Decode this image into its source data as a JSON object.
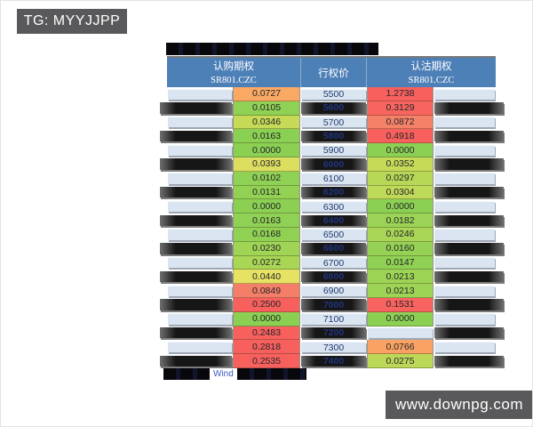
{
  "badges": {
    "telegram": "TG: MYYJJPP",
    "watermark": "www.downpg.com"
  },
  "table": {
    "title_redacted": true,
    "header": {
      "call_group": "认购期权",
      "strike_label": "行权价",
      "put_group": "认沽期权",
      "call_contract": "SR801.CZC",
      "put_contract": "SR801.CZC"
    },
    "rows": [
      {
        "strike": "5500",
        "call": "0.0727",
        "call_bg": "#f9a964",
        "put": "1.2738",
        "put_bg": "#f7605d",
        "dark": false
      },
      {
        "strike": "5600",
        "call": "0.0105",
        "call_bg": "#8fd154",
        "put": "0.3129",
        "put_bg": "#f7655e",
        "dark": true
      },
      {
        "strike": "5700",
        "call": "0.0346",
        "call_bg": "#c6da58",
        "put": "0.0872",
        "put_bg": "#f58169",
        "dark": false
      },
      {
        "strike": "5800",
        "call": "0.0163",
        "call_bg": "#8ad053",
        "put": "0.4918",
        "put_bg": "#f7605d",
        "dark": true
      },
      {
        "strike": "5900",
        "call": "0.0000",
        "call_bg": "#8bd053",
        "put": "0.0000",
        "put_bg": "#8bd053",
        "dark": false
      },
      {
        "strike": "6000",
        "call": "0.0393",
        "call_bg": "#dcde60",
        "put": "0.0352",
        "put_bg": "#c6da58",
        "dark": true
      },
      {
        "strike": "6100",
        "call": "0.0102",
        "call_bg": "#8fd154",
        "put": "0.0297",
        "put_bg": "#b7d757",
        "dark": false
      },
      {
        "strike": "6200",
        "call": "0.0131",
        "call_bg": "#92d154",
        "put": "0.0304",
        "put_bg": "#bfd958",
        "dark": true
      },
      {
        "strike": "6300",
        "call": "0.0000",
        "call_bg": "#8bd053",
        "put": "0.0000",
        "put_bg": "#8bd053",
        "dark": false
      },
      {
        "strike": "6400",
        "call": "0.0163",
        "call_bg": "#8fd154",
        "put": "0.0182",
        "put_bg": "#9ad355",
        "dark": true
      },
      {
        "strike": "6500",
        "call": "0.0168",
        "call_bg": "#90d154",
        "put": "0.0246",
        "put_bg": "#a8d556",
        "dark": false
      },
      {
        "strike": "6600",
        "call": "0.0230",
        "call_bg": "#9fd455",
        "put": "0.0160",
        "put_bg": "#94d154",
        "dark": true
      },
      {
        "strike": "6700",
        "call": "0.0272",
        "call_bg": "#aad656",
        "put": "0.0147",
        "put_bg": "#8fd154",
        "dark": false
      },
      {
        "strike": "6800",
        "call": "0.0440",
        "call_bg": "#e6e263",
        "put": "0.0213",
        "put_bg": "#9ed455",
        "dark": true
      },
      {
        "strike": "6900",
        "call": "0.0849",
        "call_bg": "#f57e68",
        "put": "0.0213",
        "put_bg": "#9ed455",
        "dark": false
      },
      {
        "strike": "7000",
        "call": "0.2500",
        "call_bg": "#f7605d",
        "put": "0.1531",
        "put_bg": "#f7635e",
        "dark": true
      },
      {
        "strike": "7100",
        "call": "0.0000",
        "call_bg": "#8bd053",
        "put": "0.0000",
        "put_bg": "#8bd053",
        "dark": false
      },
      {
        "strike": "7200",
        "call": "0.2483",
        "call_bg": "#f7605d",
        "put": "",
        "put_bg": "",
        "dark": true
      },
      {
        "strike": "7300",
        "call": "0.2818",
        "call_bg": "#f7605d",
        "put": "0.0766",
        "put_bg": "#f9a263",
        "dark": false
      },
      {
        "strike": "7400",
        "call": "0.2535",
        "call_bg": "#f7605d",
        "put": "0.0275",
        "put_bg": "#bcd857",
        "dark": true
      }
    ],
    "footer": {
      "redacted": true,
      "visible_text": "Wind"
    }
  },
  "colors": {
    "badge_bg": "#59595b",
    "header_bg": "#4e80b8",
    "row_light_bg": "#dbe5f1",
    "redaction": "#0a0a0c",
    "strike_text": "#1f3a6e",
    "value_text": "#26262a"
  }
}
